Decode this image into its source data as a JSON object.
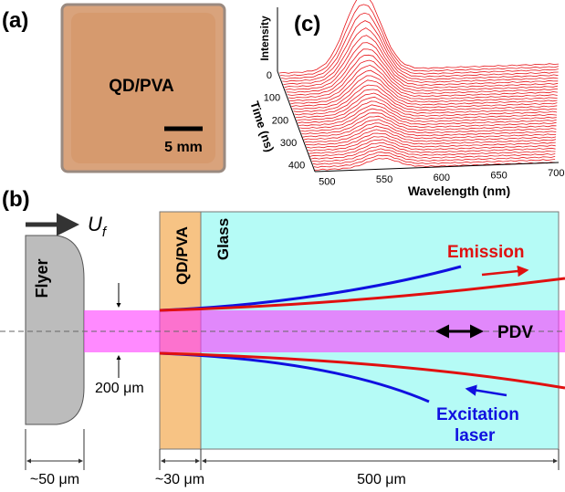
{
  "panel_a": {
    "label": "(a)",
    "sample": "QD/PVA",
    "scale_bar": "5 mm"
  },
  "panel_c": {
    "label": "(c)",
    "y_label": "Intensity",
    "z_label": "Time (ns)",
    "x_label": "Wavelength (nm)",
    "time_ticks": [
      "0",
      "100",
      "200",
      "300",
      "400"
    ],
    "wavelength_ticks": [
      "500",
      "550",
      "600",
      "650",
      "700"
    ]
  },
  "panel_b": {
    "label": "(b)",
    "velocity": {
      "main": "U",
      "sub": "f"
    },
    "flyer": "Flyer",
    "layer": "QD/PVA",
    "glass": "Glass",
    "emission": "Emission",
    "pdv": "PDV",
    "excitation": [
      "Excitation",
      "laser"
    ],
    "beam_width": "200 μm",
    "dimensions": [
      "~50 μm",
      "~30 μm",
      "500 μm"
    ]
  }
}
